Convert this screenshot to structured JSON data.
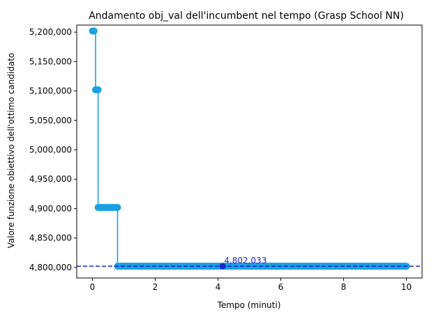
{
  "chart_data": {
    "type": "line",
    "title": "Andamento obj_val dell'incumbent nel tempo (Grasp School NN)",
    "xlabel": "Tempo (minuti)",
    "ylabel": "Valore funzione obiettivo dell'ottimo candidato",
    "xlim": [
      -0.5,
      10.5
    ],
    "ylim": [
      4782000,
      5212000
    ],
    "x_ticks": [
      0,
      2,
      4,
      6,
      8,
      10
    ],
    "x_tick_labels": [
      "0",
      "2",
      "4",
      "6",
      "8",
      "10"
    ],
    "y_ticks": [
      4800000,
      4850000,
      4900000,
      4950000,
      5000000,
      5050000,
      5100000,
      5150000,
      5200000
    ],
    "y_tick_labels": [
      "4,800,000",
      "4,850,000",
      "4,900,000",
      "4,950,000",
      "5,000,000",
      "5,050,000",
      "5,100,000",
      "5,150,000",
      "5,200,000"
    ],
    "grid": false,
    "series": [
      {
        "color": "#1ba1e2",
        "marker": "circle",
        "drawstyle": "steps-post",
        "segments": [
          {
            "x_start": 0.0,
            "x_end": 0.05,
            "y": 5202000
          },
          {
            "x_start": 0.1,
            "x_end": 0.18,
            "y": 5102000
          },
          {
            "x_start": 0.18,
            "x_end": 0.8,
            "y": 4902000
          },
          {
            "x_start": 0.8,
            "x_end": 10.0,
            "y": 4802033
          }
        ]
      }
    ],
    "reference_line": {
      "y": 4802033,
      "style": "dashed",
      "color": "#1f24c8"
    },
    "best_point": {
      "x": 4.15,
      "y": 4802033,
      "label": "4,802,033",
      "color": "#1f24c8"
    }
  }
}
